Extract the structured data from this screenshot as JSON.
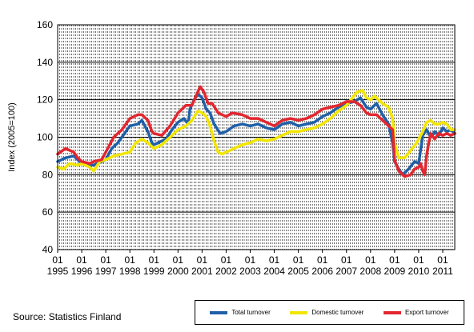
{
  "chart_data": {
    "type": "line",
    "ylabel": "Index (2005=100)",
    "ylim": [
      40,
      160
    ],
    "yticks": [
      "40",
      "60",
      "80",
      "100",
      "120",
      "140",
      "160"
    ],
    "xlim": [
      1995.0,
      2011.5
    ],
    "month_tick_label": "01",
    "years": [
      "1995",
      "1996",
      "1997",
      "1998",
      "1999",
      "2000",
      "2001",
      "2002",
      "2003",
      "2004",
      "2005",
      "2006",
      "2007",
      "2008",
      "2009",
      "2010",
      "2011"
    ],
    "grid": "horizontal solid, vertical dashed monthly",
    "series": [
      {
        "name": "Total turnover",
        "color": "#1f5fa8",
        "points": [
          [
            1995.0,
            87
          ],
          [
            1995.33,
            89
          ],
          [
            1995.67,
            90
          ],
          [
            1995.83,
            88
          ],
          [
            1996.0,
            86
          ],
          [
            1996.5,
            85
          ],
          [
            1996.83,
            87
          ],
          [
            1997.0,
            88
          ],
          [
            1997.25,
            94
          ],
          [
            1997.5,
            97
          ],
          [
            1997.83,
            103
          ],
          [
            1998.0,
            106
          ],
          [
            1998.33,
            107
          ],
          [
            1998.5,
            109
          ],
          [
            1998.75,
            103
          ],
          [
            1998.92,
            97
          ],
          [
            1999.0,
            96
          ],
          [
            1999.5,
            99
          ],
          [
            1999.75,
            104
          ],
          [
            2000.0,
            108
          ],
          [
            2000.25,
            110
          ],
          [
            2000.42,
            107
          ],
          [
            2000.5,
            115
          ],
          [
            2000.67,
            120
          ],
          [
            2000.83,
            123
          ],
          [
            2001.0,
            121
          ],
          [
            2001.17,
            115
          ],
          [
            2001.33,
            113
          ],
          [
            2001.5,
            107
          ],
          [
            2001.75,
            102
          ],
          [
            2002.0,
            103
          ],
          [
            2002.33,
            106
          ],
          [
            2002.67,
            107
          ],
          [
            2003.0,
            106
          ],
          [
            2003.33,
            107
          ],
          [
            2003.67,
            105
          ],
          [
            2004.0,
            104
          ],
          [
            2004.33,
            107
          ],
          [
            2004.67,
            108
          ],
          [
            2005.0,
            106
          ],
          [
            2005.33,
            107
          ],
          [
            2005.67,
            108
          ],
          [
            2006.0,
            111
          ],
          [
            2006.33,
            113
          ],
          [
            2006.67,
            116
          ],
          [
            2007.0,
            118
          ],
          [
            2007.33,
            119
          ],
          [
            2007.58,
            121
          ],
          [
            2007.83,
            116
          ],
          [
            2008.0,
            115
          ],
          [
            2008.25,
            118
          ],
          [
            2008.5,
            112
          ],
          [
            2008.75,
            107
          ],
          [
            2008.92,
            97
          ],
          [
            2009.0,
            87
          ],
          [
            2009.17,
            83
          ],
          [
            2009.33,
            80
          ],
          [
            2009.58,
            83
          ],
          [
            2009.83,
            87
          ],
          [
            2010.0,
            86
          ],
          [
            2010.08,
            93
          ],
          [
            2010.17,
            101
          ],
          [
            2010.33,
            104
          ],
          [
            2010.5,
            100
          ],
          [
            2010.67,
            103
          ],
          [
            2010.83,
            101
          ],
          [
            2011.0,
            105
          ],
          [
            2011.17,
            103
          ],
          [
            2011.33,
            104
          ],
          [
            2011.5,
            102
          ]
        ]
      },
      {
        "name": "Domestic turnover",
        "color": "#f2e600",
        "points": [
          [
            1995.0,
            84
          ],
          [
            1995.25,
            83
          ],
          [
            1995.5,
            86
          ],
          [
            1995.83,
            85
          ],
          [
            1996.0,
            86
          ],
          [
            1996.33,
            84
          ],
          [
            1996.5,
            82
          ],
          [
            1996.75,
            87
          ],
          [
            1997.0,
            88
          ],
          [
            1997.33,
            90
          ],
          [
            1997.67,
            91
          ],
          [
            1998.0,
            92
          ],
          [
            1998.25,
            97
          ],
          [
            1998.5,
            99
          ],
          [
            1998.75,
            97
          ],
          [
            1999.0,
            94
          ],
          [
            1999.33,
            96
          ],
          [
            1999.67,
            100
          ],
          [
            2000.0,
            104
          ],
          [
            2000.33,
            106
          ],
          [
            2000.58,
            109
          ],
          [
            2000.83,
            114
          ],
          [
            2001.0,
            113
          ],
          [
            2001.17,
            111
          ],
          [
            2001.33,
            106
          ],
          [
            2001.5,
            98
          ],
          [
            2001.67,
            92
          ],
          [
            2001.83,
            91
          ],
          [
            2002.0,
            92
          ],
          [
            2002.33,
            94
          ],
          [
            2002.67,
            96
          ],
          [
            2003.0,
            97
          ],
          [
            2003.33,
            99
          ],
          [
            2003.67,
            98
          ],
          [
            2004.0,
            99
          ],
          [
            2004.33,
            101
          ],
          [
            2004.67,
            103
          ],
          [
            2005.0,
            103
          ],
          [
            2005.33,
            104
          ],
          [
            2005.67,
            105
          ],
          [
            2006.0,
            107
          ],
          [
            2006.33,
            110
          ],
          [
            2006.67,
            114
          ],
          [
            2007.0,
            117
          ],
          [
            2007.25,
            121
          ],
          [
            2007.42,
            124
          ],
          [
            2007.67,
            125
          ],
          [
            2007.83,
            121
          ],
          [
            2008.0,
            120
          ],
          [
            2008.17,
            122
          ],
          [
            2008.33,
            120
          ],
          [
            2008.5,
            118
          ],
          [
            2008.75,
            116
          ],
          [
            2008.92,
            110
          ],
          [
            2009.0,
            97
          ],
          [
            2009.17,
            89
          ],
          [
            2009.42,
            89
          ],
          [
            2009.67,
            93
          ],
          [
            2009.92,
            97
          ],
          [
            2010.17,
            103
          ],
          [
            2010.33,
            108
          ],
          [
            2010.5,
            109
          ],
          [
            2010.67,
            107
          ],
          [
            2010.83,
            107
          ],
          [
            2011.0,
            108
          ],
          [
            2011.17,
            107
          ],
          [
            2011.33,
            104
          ],
          [
            2011.5,
            104
          ]
        ]
      },
      {
        "name": "Export turnover",
        "color": "#e3262f",
        "points": [
          [
            1995.0,
            91
          ],
          [
            1995.33,
            94
          ],
          [
            1995.67,
            92
          ],
          [
            1995.83,
            89
          ],
          [
            1996.0,
            87
          ],
          [
            1996.33,
            86
          ],
          [
            1996.5,
            87
          ],
          [
            1996.83,
            88
          ],
          [
            1997.0,
            92
          ],
          [
            1997.33,
            100
          ],
          [
            1997.67,
            104
          ],
          [
            1998.0,
            110
          ],
          [
            1998.33,
            112
          ],
          [
            1998.5,
            112
          ],
          [
            1998.75,
            109
          ],
          [
            1998.92,
            103
          ],
          [
            1999.0,
            102
          ],
          [
            1999.33,
            101
          ],
          [
            1999.67,
            106
          ],
          [
            2000.0,
            113
          ],
          [
            2000.33,
            117
          ],
          [
            2000.58,
            117
          ],
          [
            2000.75,
            122
          ],
          [
            2000.92,
            127
          ],
          [
            2001.08,
            124
          ],
          [
            2001.25,
            118
          ],
          [
            2001.42,
            118
          ],
          [
            2001.67,
            113
          ],
          [
            2002.0,
            111
          ],
          [
            2002.25,
            113
          ],
          [
            2002.67,
            112
          ],
          [
            2003.0,
            110
          ],
          [
            2003.33,
            110
          ],
          [
            2003.67,
            108
          ],
          [
            2004.0,
            106
          ],
          [
            2004.33,
            109
          ],
          [
            2004.67,
            110
          ],
          [
            2005.0,
            109
          ],
          [
            2005.33,
            110
          ],
          [
            2005.67,
            112
          ],
          [
            2006.0,
            115
          ],
          [
            2006.33,
            116
          ],
          [
            2006.67,
            117
          ],
          [
            2007.0,
            119
          ],
          [
            2007.33,
            119
          ],
          [
            2007.58,
            117
          ],
          [
            2007.83,
            113
          ],
          [
            2008.0,
            112
          ],
          [
            2008.25,
            112
          ],
          [
            2008.5,
            109
          ],
          [
            2008.75,
            106
          ],
          [
            2008.92,
            104
          ],
          [
            2009.0,
            88
          ],
          [
            2009.17,
            82
          ],
          [
            2009.42,
            79
          ],
          [
            2009.67,
            80
          ],
          [
            2009.83,
            83
          ],
          [
            2010.0,
            84
          ],
          [
            2010.08,
            86
          ],
          [
            2010.17,
            82
          ],
          [
            2010.25,
            80
          ],
          [
            2010.33,
            90
          ],
          [
            2010.42,
            97
          ],
          [
            2010.5,
            102
          ],
          [
            2010.67,
            99
          ],
          [
            2010.83,
            102
          ],
          [
            2011.0,
            101
          ],
          [
            2011.17,
            102
          ],
          [
            2011.33,
            101
          ],
          [
            2011.5,
            102
          ]
        ]
      }
    ]
  },
  "source_text": "Source: Statistics Finland",
  "legend_labels": [
    "Total turnover",
    "Domestic turnover",
    "Export turnover"
  ]
}
